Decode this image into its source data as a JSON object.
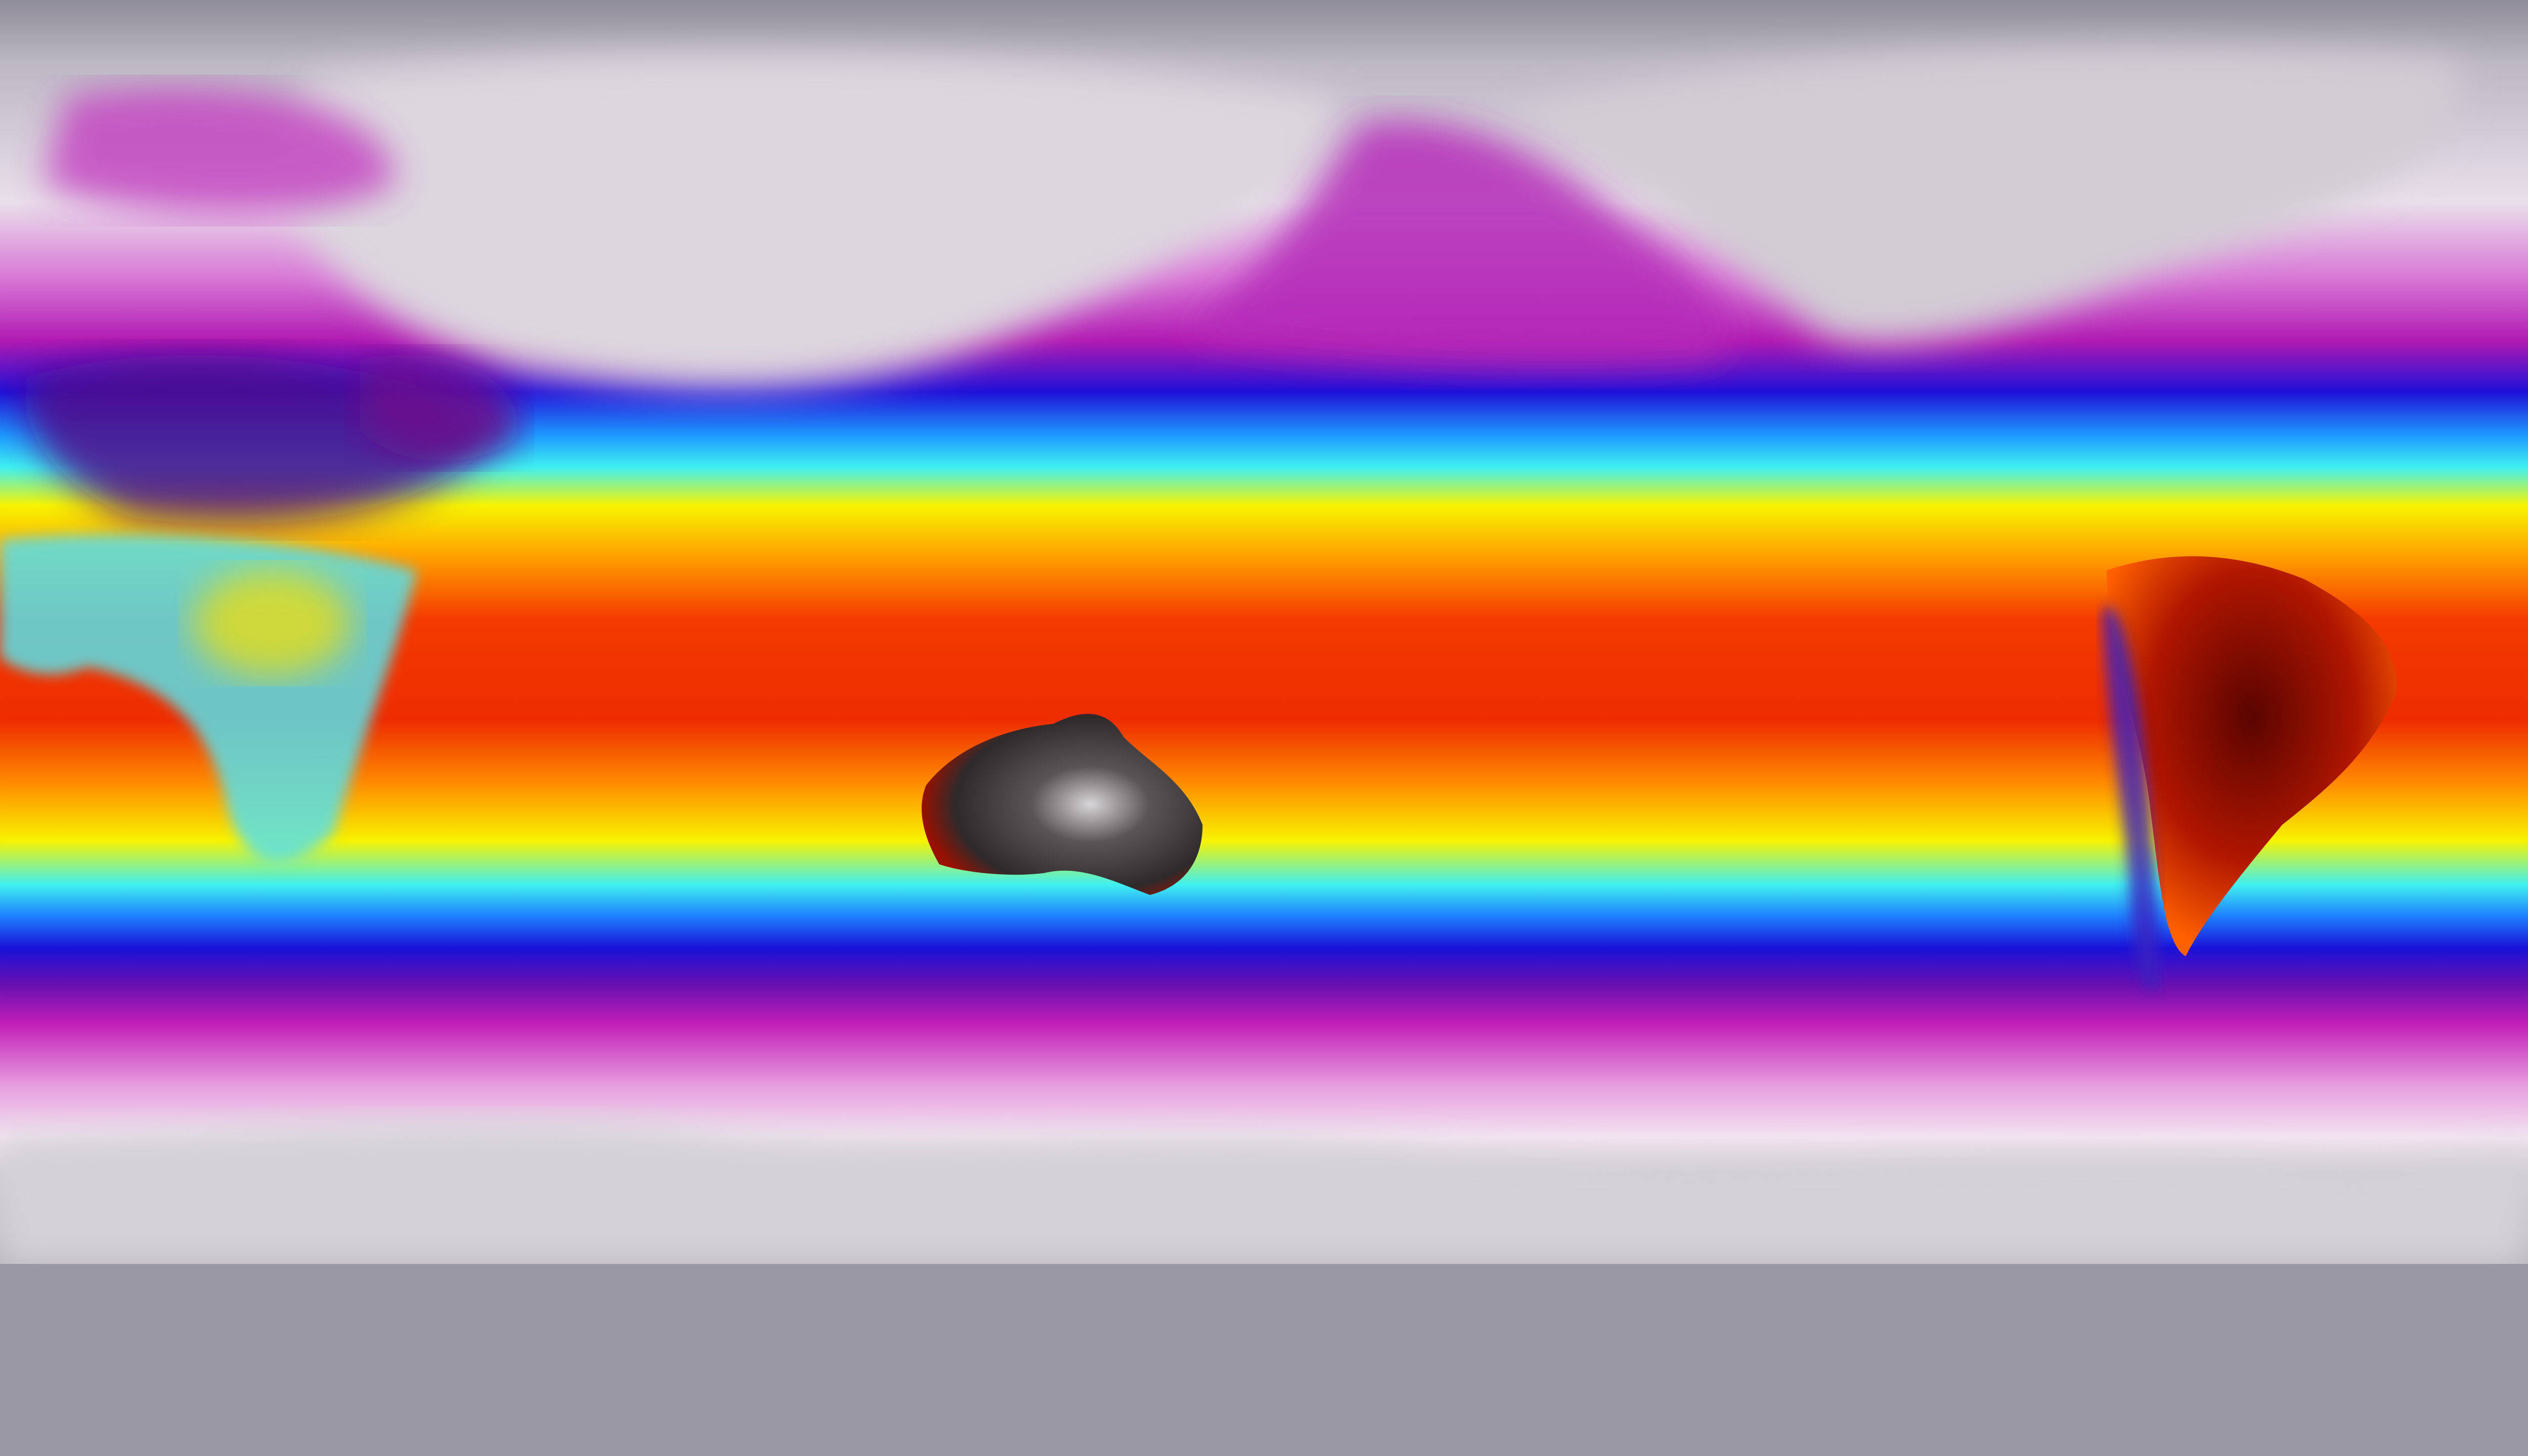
{
  "map": {
    "projection": "equirectangular",
    "palette": {
      "polar_dark": "#8e8c98",
      "cold_white": "#f2e8f2",
      "magenta": "#c21fb8",
      "purple": "#6a10b0",
      "blue": "#1a12d8",
      "cyan": "#40f0f0",
      "yellow": "#f8f400",
      "orange": "#ff9a00",
      "red": "#f02800",
      "dark_red": "#8a0a00",
      "hot_black": "#3a3436",
      "antarctic_gray": "#cfcdd3"
    }
  }
}
